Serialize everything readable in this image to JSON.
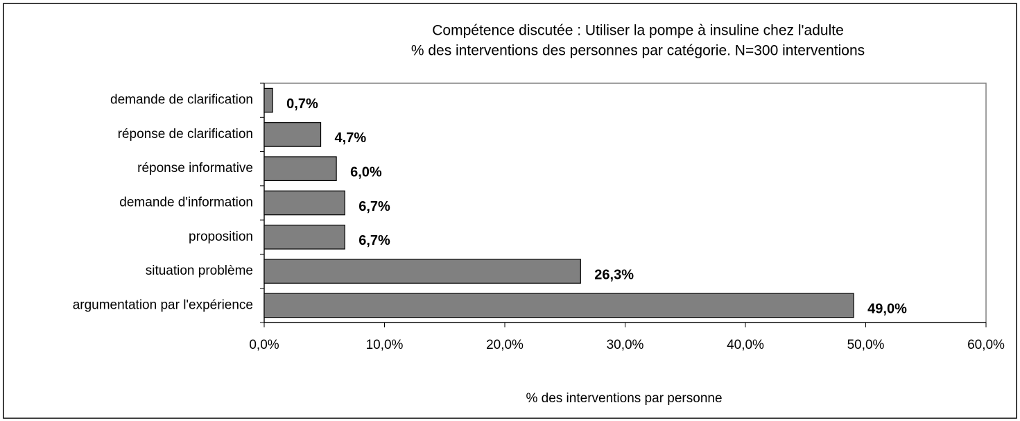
{
  "chart_data": {
    "type": "bar",
    "orientation": "horizontal",
    "title": "Compétence discutée : Utiliser la pompe à insuline chez l'adulte",
    "subtitle": "% des interventions des personnes par catégorie. N=300 interventions",
    "x_label": "% des interventions par personne",
    "categories": [
      "demande de clarification",
      "réponse de clarification",
      "réponse informative",
      "demande d'information",
      "proposition",
      "situation problème",
      "argumentation par l'expérience"
    ],
    "values": [
      0.7,
      4.7,
      6.0,
      6.7,
      6.7,
      26.3,
      49.0
    ],
    "value_labels": [
      "0,7%",
      "4,7%",
      "6,0%",
      "6,7%",
      "6,7%",
      "26,3%",
      "49,0%"
    ],
    "color": "#808080",
    "xlim": [
      0,
      60
    ],
    "xticks": [
      {
        "value": 0,
        "label": "0,0%"
      },
      {
        "value": 10,
        "label": "10,0%"
      },
      {
        "value": 20,
        "label": "20,0%"
      },
      {
        "value": 30,
        "label": "30,0%"
      },
      {
        "value": 40,
        "label": "40,0%"
      },
      {
        "value": 50,
        "label": "50,0%"
      },
      {
        "value": 60,
        "label": "60,0%"
      }
    ],
    "grid": false
  }
}
